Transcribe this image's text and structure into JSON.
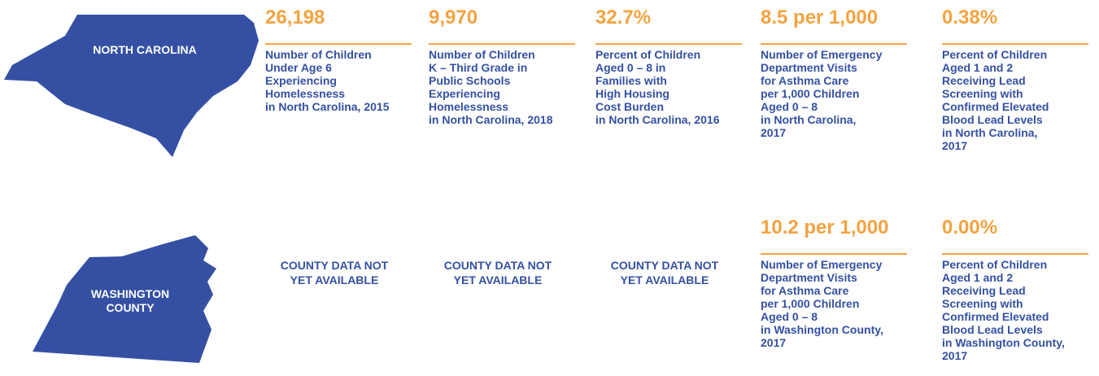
{
  "state": {
    "label": "NORTH CAROLINA",
    "stats": [
      {
        "value": "26,198",
        "description": [
          "Number of Children",
          "Under Age 6",
          "Experiencing",
          "Homelessness",
          "in North Carolina, 2015"
        ]
      },
      {
        "value": "9,970",
        "description": [
          "Number of Children",
          "K – Third Grade in",
          "Public Schools",
          "Experiencing",
          "Homelessness",
          "in North Carolina, 2018"
        ]
      },
      {
        "value": "32.7%",
        "description": [
          "Percent of Children",
          "Aged 0 – 8 in",
          "Families with",
          "High Housing",
          "Cost Burden",
          "in North Carolina, 2016"
        ]
      },
      {
        "value": "8.5 per 1,000",
        "description": [
          "Number of Emergency",
          "Department Visits",
          "for Asthma Care",
          "per 1,000 Children",
          "Aged 0 – 8",
          "in North Carolina,",
          "2017"
        ]
      },
      {
        "value": "0.38%",
        "description": [
          "Percent of Children",
          "Aged 1 and 2",
          "Receiving Lead",
          "Screening with",
          "Confirmed Elevated",
          "Blood Lead Levels",
          "in North Carolina,",
          "2017"
        ]
      }
    ]
  },
  "county": {
    "label": [
      "WASHINGTON",
      "COUNTY"
    ],
    "stats": [
      {
        "text": [
          "COUNTY DATA NOT",
          "YET AVAILABLE"
        ]
      },
      {
        "text": [
          "COUNTY DATA NOT",
          "YET AVAILABLE"
        ]
      },
      {
        "text": [
          "COUNTY DATA NOT",
          "YET AVAILABLE"
        ]
      },
      {
        "value": "10.2 per 1,000",
        "description": [
          "Number of Emergency",
          "Department Visits",
          "for Asthma Care",
          "per 1,000 Children",
          "Aged 0 – 8",
          "in Washington County,",
          "2017"
        ]
      },
      {
        "value": "0.00%",
        "description": [
          "Percent of Children",
          "Aged 1 and 2",
          "Receiving Lead",
          "Screening with",
          "Confirmed Elevated",
          "Blood Lead Levels",
          "in Washington County,",
          "2017"
        ]
      }
    ]
  }
}
